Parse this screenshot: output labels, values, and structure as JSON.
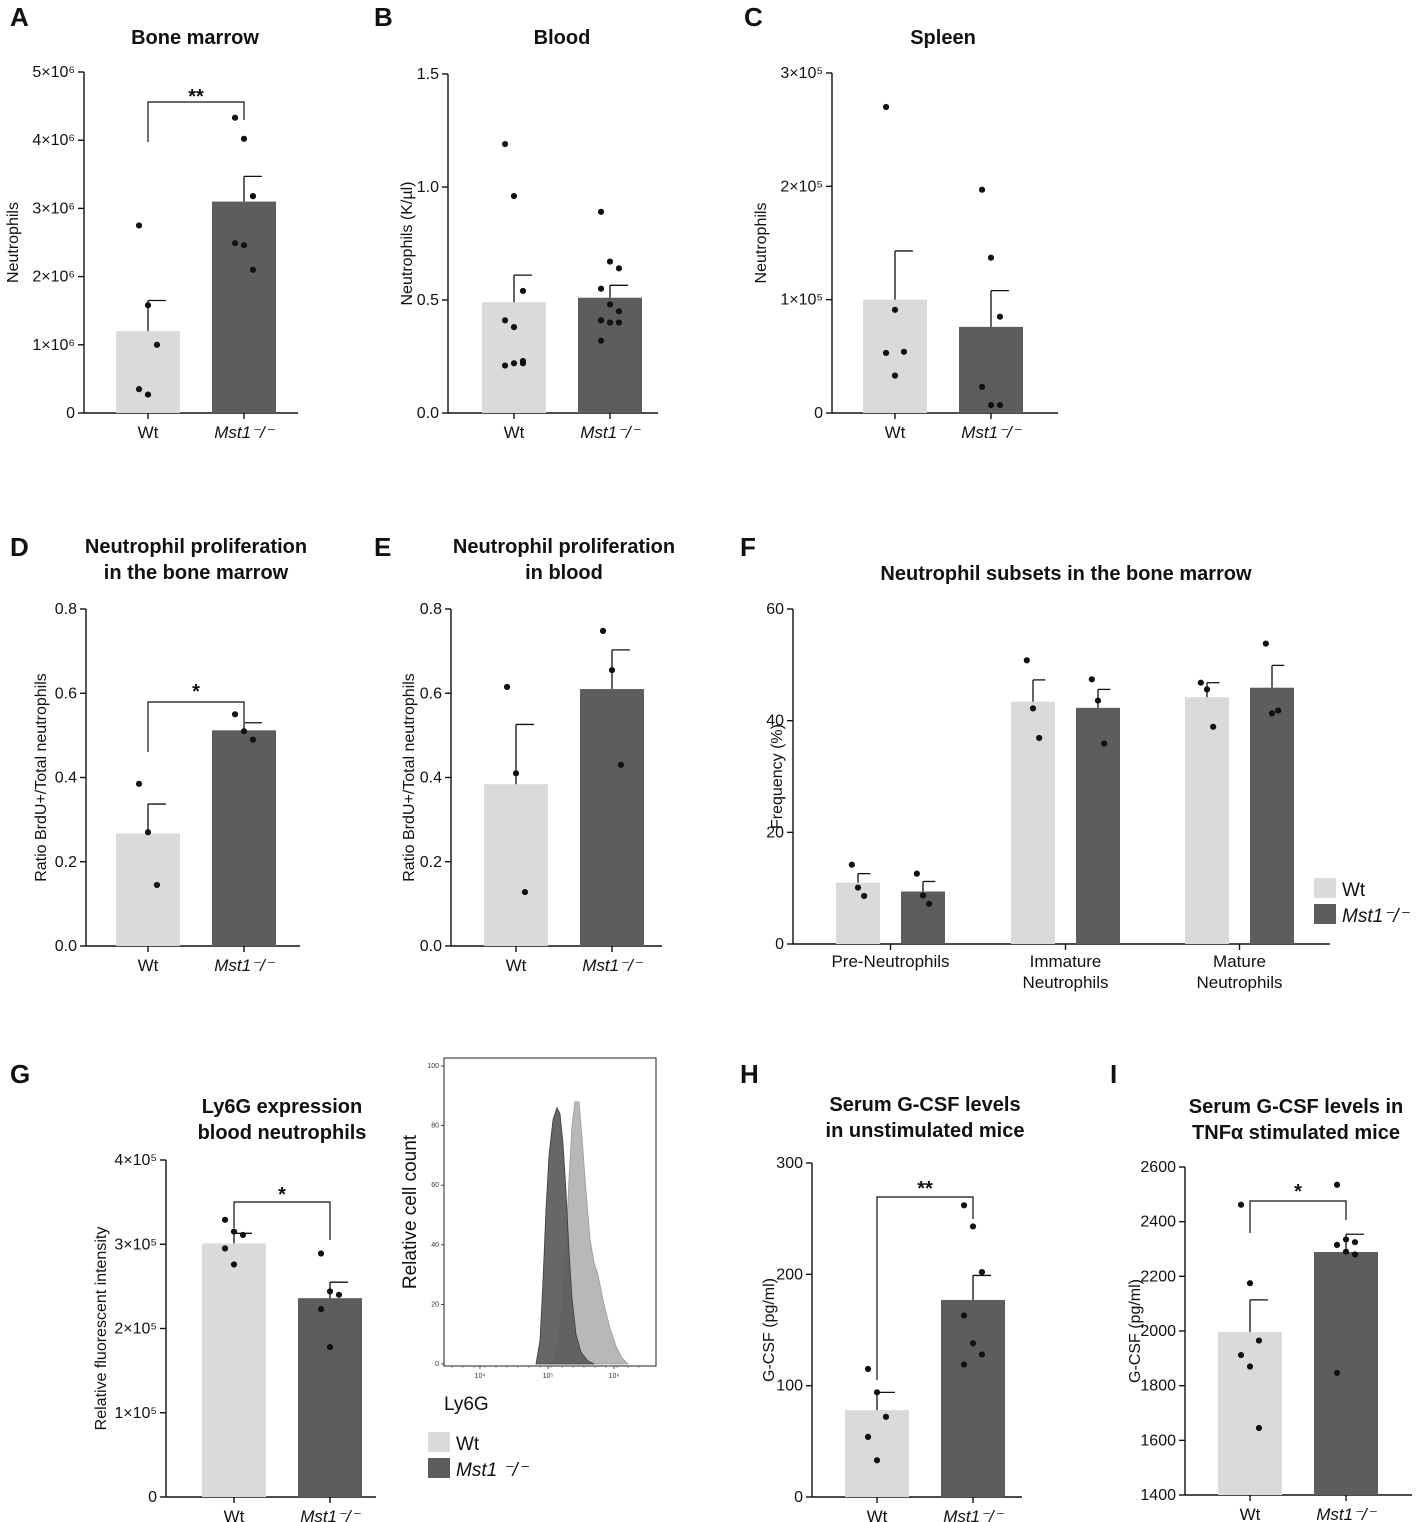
{
  "colors": {
    "wt": "#d9dad9",
    "ko": "#5c5d5e",
    "ink": "#111111"
  },
  "chart_data": [
    {
      "id": "A",
      "panel_label": "A",
      "type": "bar",
      "title": [
        "Bone marrow"
      ],
      "ylabel": "Neutrophils",
      "ylim": [
        0,
        5000000
      ],
      "ticks": [
        0,
        1000000,
        2000000,
        3000000,
        4000000,
        5000000
      ],
      "tick_labels": [
        "0",
        "1×10⁶",
        "2×10⁶",
        "3×10⁶",
        "4×10⁶",
        "5×10⁶"
      ],
      "categories": [
        "Wt",
        "Mst1⁻/⁻"
      ],
      "values": [
        1200000,
        3100000
      ],
      "sem": [
        450000,
        370000
      ],
      "points": [
        [
          2750000,
          1580000,
          1000000,
          350000,
          270000
        ],
        [
          4330000,
          4020000,
          3180000,
          2490000,
          2460000,
          2100000
        ]
      ],
      "significance": "**"
    },
    {
      "id": "B",
      "panel_label": "B",
      "type": "bar",
      "title": [
        "Blood"
      ],
      "ylabel": "Neutrophils (K/µl)",
      "ylim": [
        0,
        1.5
      ],
      "ticks": [
        0,
        0.5,
        1.0,
        1.5
      ],
      "tick_labels": [
        "0.0",
        "0.5",
        "1.0",
        "1.5"
      ],
      "categories": [
        "Wt",
        "Mst1⁻/⁻"
      ],
      "values": [
        0.49,
        0.51
      ],
      "sem": [
        0.12,
        0.055
      ],
      "points": [
        [
          1.19,
          0.96,
          0.54,
          0.41,
          0.38,
          0.23,
          0.21,
          0.22,
          0.22
        ],
        [
          0.89,
          0.67,
          0.64,
          0.55,
          0.48,
          0.45,
          0.41,
          0.4,
          0.4,
          0.32
        ]
      ],
      "significance": ""
    },
    {
      "id": "C",
      "panel_label": "C",
      "type": "bar",
      "title": [
        "Spleen"
      ],
      "ylabel": "Neutrophils",
      "ylim": [
        0,
        300000
      ],
      "ticks": [
        0,
        100000,
        200000,
        300000
      ],
      "tick_labels": [
        "0",
        "1×10⁵",
        "2×10⁵",
        "3×10⁵"
      ],
      "categories": [
        "Wt",
        "Mst1⁻/⁻"
      ],
      "values": [
        100000,
        76000
      ],
      "sem": [
        43000,
        32000
      ],
      "points": [
        [
          270000,
          91000,
          54000,
          53000,
          33000
        ],
        [
          197000,
          137000,
          85000,
          23000,
          7000,
          7000
        ]
      ],
      "significance": ""
    },
    {
      "id": "D",
      "panel_label": "D",
      "type": "bar",
      "title": [
        "Neutrophil proliferation",
        "in the bone marrow"
      ],
      "ylabel": "Ratio BrdU+/Total neutrophils",
      "ylim": [
        0,
        0.8
      ],
      "ticks": [
        0,
        0.2,
        0.4,
        0.6,
        0.8
      ],
      "tick_labels": [
        "0.0",
        "0.2",
        "0.4",
        "0.6",
        "0.8"
      ],
      "categories": [
        "Wt",
        "Mst1⁻/⁻"
      ],
      "values": [
        0.267,
        0.512
      ],
      "sem": [
        0.07,
        0.018
      ],
      "points": [
        [
          0.385,
          0.27,
          0.145
        ],
        [
          0.55,
          0.51,
          0.49
        ]
      ],
      "significance": "*"
    },
    {
      "id": "E",
      "panel_label": "E",
      "type": "bar",
      "title": [
        "Neutrophil proliferation",
        "in blood"
      ],
      "ylabel": "Ratio BrdU+/Total neutrophils",
      "ylim": [
        0,
        0.8
      ],
      "ticks": [
        0,
        0.2,
        0.4,
        0.6,
        0.8
      ],
      "tick_labels": [
        "0.0",
        "0.2",
        "0.4",
        "0.6",
        "0.8"
      ],
      "categories": [
        "Wt",
        "Mst1⁻/⁻"
      ],
      "values": [
        0.384,
        0.61
      ],
      "sem": [
        0.142,
        0.093
      ],
      "points": [
        [
          0.615,
          0.41,
          0.128
        ],
        [
          0.748,
          0.655,
          0.43
        ]
      ],
      "significance": ""
    },
    {
      "id": "F",
      "panel_label": "F",
      "type": "bar",
      "title": [
        "Neutrophil subsets in the bone marrow"
      ],
      "ylabel": "Frequency (%)",
      "ylim": [
        0,
        60
      ],
      "ticks": [
        0,
        20,
        40,
        60
      ],
      "tick_labels": [
        "0",
        "20",
        "40",
        "60"
      ],
      "categories": [
        [
          "Pre-Neutrophils"
        ],
        [
          "Immature",
          "Neutrophils"
        ],
        [
          "Mature",
          "Neutrophils"
        ]
      ],
      "series": [
        {
          "name": "Wt",
          "values": [
            11.0,
            43.4,
            44.2
          ],
          "sem": [
            1.6,
            3.9,
            2.6
          ],
          "points": [
            [
              14.2,
              10.1,
              8.6
            ],
            [
              50.8,
              42.2,
              36.9
            ],
            [
              46.8,
              45.6,
              38.9
            ]
          ]
        },
        {
          "name": "Mst1⁻/⁻",
          "values": [
            9.4,
            42.3,
            45.9
          ],
          "sem": [
            1.8,
            3.3,
            4.0
          ],
          "points": [
            [
              12.6,
              8.7,
              7.2
            ],
            [
              47.4,
              43.6,
              35.9
            ],
            [
              53.8,
              41.3,
              41.8
            ]
          ]
        }
      ],
      "legend": [
        "Wt",
        "Mst1⁻/⁻"
      ],
      "significance": ""
    },
    {
      "id": "G",
      "panel_label": "G",
      "type": "bar",
      "title": [
        "Ly6G expression",
        "blood neutrophils"
      ],
      "ylabel": "Relative fluorescent intensity",
      "ylim": [
        0,
        400000
      ],
      "ticks": [
        0,
        100000,
        200000,
        300000,
        400000
      ],
      "tick_labels": [
        "0",
        "1×10⁵",
        "2×10⁵",
        "3×10⁵",
        "4×10⁵"
      ],
      "categories": [
        "Wt",
        "Mst1⁻/⁻"
      ],
      "values": [
        301000,
        236000
      ],
      "sem": [
        12000,
        19000
      ],
      "points": [
        [
          329000,
          315000,
          311000,
          295000,
          276000
        ],
        [
          289000,
          244000,
          240000,
          223000,
          178000
        ]
      ],
      "significance": "*"
    },
    {
      "id": "G-hist",
      "type": "histogram",
      "ylabel": "Relative cell count",
      "xlabel": "Ly6G",
      "y_ticks": [
        0,
        20,
        40,
        60,
        80,
        100
      ],
      "x_ticks": [
        "10⁴",
        "10⁵",
        "10⁶"
      ],
      "legend": [
        "Wt",
        "Mst1 ⁻/⁻"
      ]
    },
    {
      "id": "H",
      "panel_label": "H",
      "type": "bar",
      "title": [
        "Serum G-CSF levels",
        "in unstimulated mice"
      ],
      "ylabel": "G-CSF (pg/ml)",
      "ylim": [
        0,
        300
      ],
      "ticks": [
        0,
        100,
        200,
        300
      ],
      "tick_labels": [
        "0",
        "100",
        "200",
        "300"
      ],
      "categories": [
        "Wt",
        "Mst1⁻/⁻"
      ],
      "values": [
        78,
        177
      ],
      "sem": [
        16,
        22
      ],
      "points": [
        [
          115,
          94,
          72,
          54,
          33
        ],
        [
          262,
          243,
          202,
          163,
          138,
          128,
          119
        ]
      ],
      "significance": "**"
    },
    {
      "id": "I",
      "panel_label": "I",
      "type": "bar",
      "title": [
        "Serum G-CSF levels in",
        "TNFα stimulated mice"
      ],
      "ylabel": "G-CSF (pg/ml)",
      "ylim": [
        1400,
        2600
      ],
      "ticks": [
        1400,
        1600,
        1800,
        2000,
        2200,
        2400,
        2600
      ],
      "tick_labels": [
        "1400",
        "1600",
        "1800",
        "2000",
        "2200",
        "2400",
        "2600"
      ],
      "categories": [
        "Wt",
        "Mst1⁻/⁻"
      ],
      "values": [
        1996,
        2289
      ],
      "sem": [
        118,
        65
      ],
      "points": [
        [
          2462,
          2175,
          1965,
          1912,
          1870,
          1645
        ],
        [
          2535,
          2335,
          2325,
          2315,
          2290,
          2280,
          1847
        ]
      ],
      "significance": "*"
    }
  ]
}
